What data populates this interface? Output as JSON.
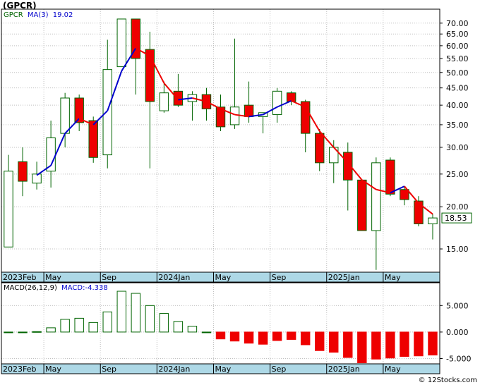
{
  "title": "(GPCR)",
  "legend": {
    "ticker": "GPCR",
    "ma_label": "MA(3)",
    "ma_value": "19.02"
  },
  "macd_legend": {
    "label": "MACD(26,12,9)",
    "value": "MACD:-4.338"
  },
  "last_price_label": "18.53",
  "copyright": "© 12Stocks.com",
  "colors": {
    "up": "#ffffff",
    "down": "#ee0000",
    "ma_up": "#0000cc",
    "ma_down": "#ee0000",
    "axis_band": "#add8e6",
    "macd_pos": "#ffffff",
    "macd_neg": "#ee0000",
    "macd_outline": "#006400",
    "grid": "#c0c0c0"
  },
  "chart_data": [
    {
      "type": "candlestick",
      "scale": "log",
      "ylim": [
        12.8,
        77
      ],
      "yticks": [
        {
          "v": 70,
          "label": "70.00"
        },
        {
          "v": 65,
          "label": "65.00"
        },
        {
          "v": 60,
          "label": "60.00"
        },
        {
          "v": 55,
          "label": "55.00"
        },
        {
          "v": 50,
          "label": "50.00"
        },
        {
          "v": 45,
          "label": "45.00"
        },
        {
          "v": 40,
          "label": "40.00"
        },
        {
          "v": 35,
          "label": "35.00"
        },
        {
          "v": 30,
          "label": "30.00"
        },
        {
          "v": 25,
          "label": "25.00"
        },
        {
          "v": 20,
          "label": "20.00"
        },
        {
          "v": 15,
          "label": "15.00"
        }
      ],
      "xticks": [
        {
          "i": 0,
          "label": "2023Feb"
        },
        {
          "i": 3,
          "label": "May"
        },
        {
          "i": 7,
          "label": "Sep"
        },
        {
          "i": 11,
          "label": "2024Jan"
        },
        {
          "i": 15,
          "label": "May"
        },
        {
          "i": 19,
          "label": "Sep"
        },
        {
          "i": 23,
          "label": "2025Jan"
        },
        {
          "i": 27,
          "label": "May"
        }
      ],
      "candles": [
        {
          "o": 15.2,
          "h": 28.5,
          "l": 15.2,
          "c": 25.5
        },
        {
          "o": 27.2,
          "h": 30.0,
          "l": 21.5,
          "c": 23.8
        },
        {
          "o": 23.5,
          "h": 27.2,
          "l": 22.5,
          "c": 25.0
        },
        {
          "o": 25.5,
          "h": 36.0,
          "l": 22.8,
          "c": 32.0
        },
        {
          "o": 33.0,
          "h": 43.5,
          "l": 30.0,
          "c": 42.0
        },
        {
          "o": 42.0,
          "h": 43.0,
          "l": 33.5,
          "c": 35.5
        },
        {
          "o": 36.0,
          "h": 37.0,
          "l": 27.0,
          "c": 28.0
        },
        {
          "o": 28.5,
          "h": 62.5,
          "l": 26.0,
          "c": 51.0
        },
        {
          "o": 52.0,
          "h": 72.0,
          "l": 52.0,
          "c": 72.0
        },
        {
          "o": 72.0,
          "h": 72.0,
          "l": 43.0,
          "c": 55.0
        },
        {
          "o": 58.5,
          "h": 66.0,
          "l": 26.0,
          "c": 41.0
        },
        {
          "o": 38.5,
          "h": 47.0,
          "l": 38.0,
          "c": 43.5
        },
        {
          "o": 44.0,
          "h": 49.5,
          "l": 39.5,
          "c": 40.0
        },
        {
          "o": 41.0,
          "h": 44.0,
          "l": 36.0,
          "c": 43.0
        },
        {
          "o": 43.0,
          "h": 45.0,
          "l": 36.0,
          "c": 39.0
        },
        {
          "o": 39.5,
          "h": 43.0,
          "l": 33.5,
          "c": 34.5
        },
        {
          "o": 35.0,
          "h": 63.0,
          "l": 34.0,
          "c": 39.5
        },
        {
          "o": 40.0,
          "h": 47.0,
          "l": 35.5,
          "c": 37.0
        },
        {
          "o": 37.0,
          "h": 38.0,
          "l": 33.0,
          "c": 38.0
        },
        {
          "o": 37.5,
          "h": 45.0,
          "l": 35.5,
          "c": 44.0
        },
        {
          "o": 43.5,
          "h": 44.0,
          "l": 40.0,
          "c": 41.0
        },
        {
          "o": 41.0,
          "h": 41.5,
          "l": 29.0,
          "c": 33.0
        },
        {
          "o": 33.0,
          "h": 34.0,
          "l": 25.5,
          "c": 27.0
        },
        {
          "o": 27.0,
          "h": 31.5,
          "l": 23.5,
          "c": 30.0
        },
        {
          "o": 29.0,
          "h": 31.0,
          "l": 19.5,
          "c": 24.0
        },
        {
          "o": 24.0,
          "h": 24.0,
          "l": 17.0,
          "c": 17.0
        },
        {
          "o": 17.0,
          "h": 28.0,
          "l": 13.0,
          "c": 27.0
        },
        {
          "o": 27.5,
          "h": 28.0,
          "l": 21.5,
          "c": 21.8
        },
        {
          "o": 22.5,
          "h": 23.0,
          "l": 20.2,
          "c": 21.0
        },
        {
          "o": 20.8,
          "h": 21.5,
          "l": 17.5,
          "c": 17.8
        },
        {
          "o": 17.8,
          "h": 19.0,
          "l": 16.0,
          "c": 18.53
        }
      ],
      "ma": [
        null,
        null,
        24.8,
        26.5,
        33.0,
        36.5,
        35.0,
        38.5,
        50.5,
        59.0,
        56.0,
        46.5,
        41.5,
        42.0,
        41.0,
        39.0,
        37.5,
        37.0,
        37.5,
        39.5,
        41.2,
        39.5,
        33.5,
        30.0,
        27.0,
        24.0,
        22.5,
        22.0,
        23.0,
        20.5,
        19.02
      ],
      "last_price": 18.53
    },
    {
      "type": "bar",
      "label": "MACD(26,12,9)",
      "ylim": [
        -6.0,
        9.3
      ],
      "yticks": [
        {
          "v": 5,
          "label": "5.000"
        },
        {
          "v": 0,
          "label": "0.000"
        },
        {
          "v": -5,
          "label": "-5.000"
        }
      ],
      "values": [
        0.0,
        0.0,
        0.08,
        0.8,
        2.4,
        2.6,
        1.8,
        3.8,
        7.7,
        7.3,
        5.0,
        3.5,
        2.0,
        1.1,
        0.0,
        -1.3,
        -1.7,
        -2.1,
        -2.3,
        -1.6,
        -1.4,
        -2.4,
        -3.5,
        -3.8,
        -4.8,
        -5.8,
        -5.1,
        -4.9,
        -4.6,
        -4.5,
        -4.338
      ]
    }
  ]
}
